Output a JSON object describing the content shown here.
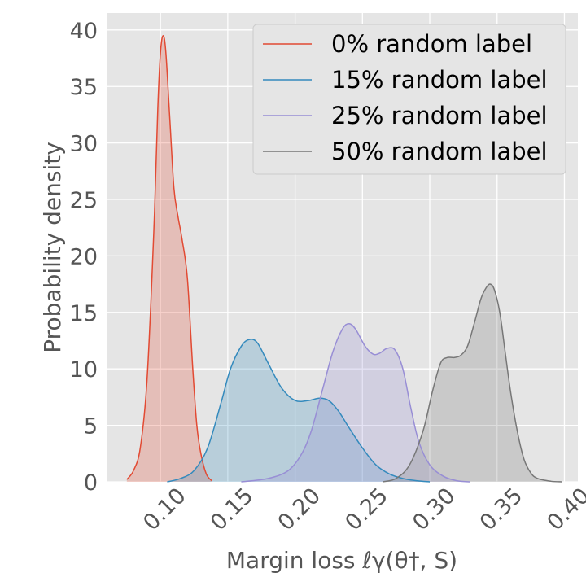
{
  "chart_data": {
    "type": "area",
    "xlabel": "Margin loss ℓγ(θ†, S)",
    "ylabel": "Probability density",
    "xlim": [
      0.06,
      0.41
    ],
    "ylim": [
      0,
      41.5
    ],
    "xticks": [
      0.1,
      0.15,
      0.2,
      0.25,
      0.3,
      0.35,
      0.4
    ],
    "xtick_labels": [
      "0.10",
      "0.15",
      "0.20",
      "0.25",
      "0.30",
      "0.35",
      "0.40"
    ],
    "yticks": [
      0,
      5,
      10,
      15,
      20,
      25,
      30,
      35,
      40
    ],
    "ytick_labels": [
      "0",
      "5",
      "10",
      "15",
      "20",
      "25",
      "30",
      "35",
      "40"
    ],
    "grid": true,
    "legend_position": "top-right",
    "series": [
      {
        "name": "0% random label",
        "color": "#E24A33",
        "x": [
          0.075,
          0.08,
          0.085,
          0.09,
          0.095,
          0.098,
          0.1,
          0.102,
          0.104,
          0.107,
          0.11,
          0.113,
          0.116,
          0.12,
          0.124,
          0.127,
          0.13,
          0.134,
          0.138
        ],
        "y": [
          0.2,
          1.0,
          3.0,
          9.0,
          22.0,
          33.0,
          38.0,
          39.5,
          38.0,
          32.0,
          26.0,
          23.5,
          21.5,
          18.0,
          10.0,
          5.0,
          2.5,
          0.7,
          0.1
        ]
      },
      {
        "name": "15% random label",
        "color": "#348ABD",
        "x": [
          0.105,
          0.115,
          0.125,
          0.135,
          0.145,
          0.152,
          0.16,
          0.166,
          0.172,
          0.18,
          0.19,
          0.2,
          0.21,
          0.218,
          0.225,
          0.232,
          0.24,
          0.25,
          0.26,
          0.27,
          0.28,
          0.29,
          0.3
        ],
        "y": [
          0.0,
          0.3,
          1.0,
          3.0,
          7.0,
          10.0,
          12.0,
          12.6,
          12.3,
          10.5,
          8.3,
          7.2,
          7.2,
          7.4,
          7.2,
          6.3,
          4.8,
          3.0,
          1.5,
          0.7,
          0.3,
          0.1,
          0.0
        ]
      },
      {
        "name": "25% random label",
        "color": "#988ED5",
        "x": [
          0.16,
          0.18,
          0.195,
          0.205,
          0.212,
          0.22,
          0.228,
          0.235,
          0.24,
          0.245,
          0.252,
          0.258,
          0.263,
          0.268,
          0.274,
          0.28,
          0.286,
          0.292,
          0.3,
          0.31,
          0.32,
          0.33
        ],
        "y": [
          0.0,
          0.3,
          1.0,
          2.5,
          4.5,
          8.0,
          11.5,
          13.5,
          14.0,
          13.5,
          12.0,
          11.3,
          11.4,
          11.8,
          11.7,
          10.0,
          6.5,
          3.5,
          1.5,
          0.5,
          0.1,
          0.0
        ]
      },
      {
        "name": "50% random label",
        "color": "#777777",
        "x": [
          0.265,
          0.275,
          0.285,
          0.295,
          0.302,
          0.308,
          0.313,
          0.318,
          0.323,
          0.328,
          0.333,
          0.338,
          0.342,
          0.345,
          0.348,
          0.352,
          0.356,
          0.36,
          0.365,
          0.37,
          0.375,
          0.38,
          0.39,
          0.398
        ],
        "y": [
          0.0,
          0.3,
          1.5,
          4.5,
          8.0,
          10.5,
          11.0,
          11.0,
          11.2,
          12.0,
          14.0,
          16.2,
          17.2,
          17.5,
          17.0,
          15.0,
          11.5,
          8.0,
          4.5,
          2.0,
          0.8,
          0.3,
          0.05,
          0.0
        ]
      }
    ]
  }
}
